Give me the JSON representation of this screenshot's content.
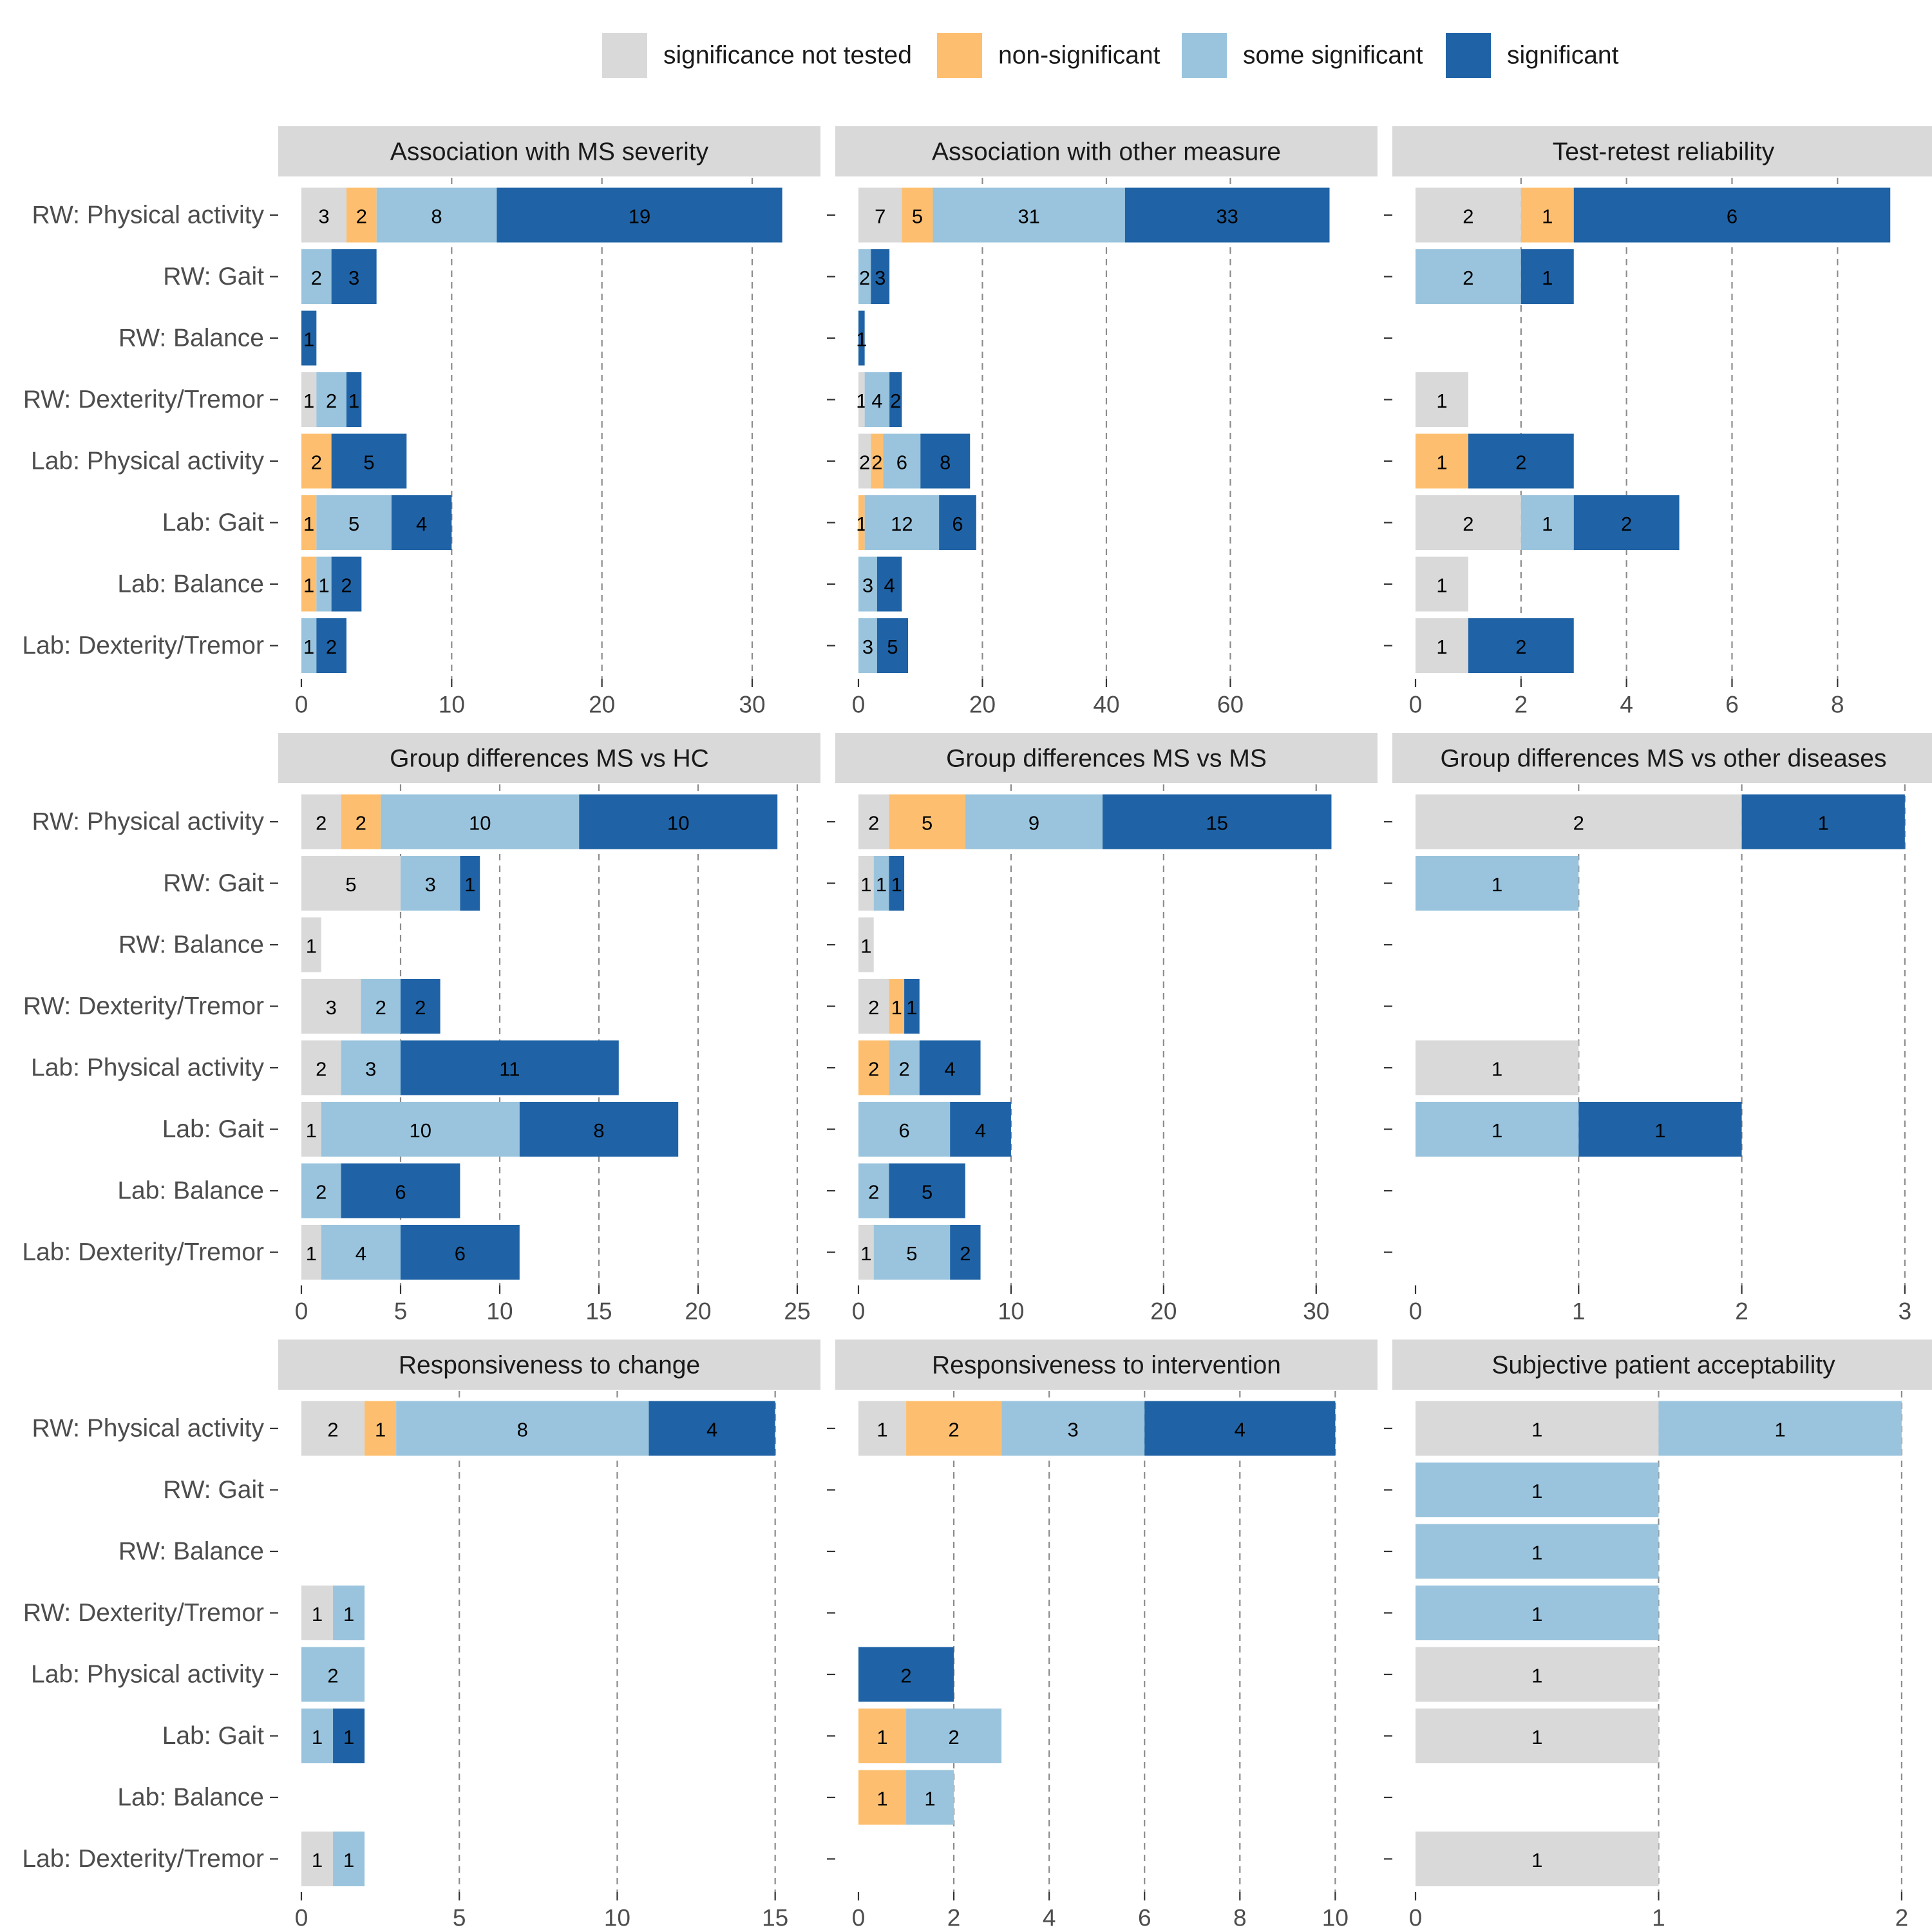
{
  "legend": {
    "items": [
      {
        "label": "significance not tested",
        "color": "#D9D9D9"
      },
      {
        "label": "non-significant",
        "color": "#FDBF6F"
      },
      {
        "label": "some significant",
        "color": "#9AC4DD"
      },
      {
        "label": "significant",
        "color": "#1F63A6"
      }
    ]
  },
  "chart_data": {
    "type": "bar",
    "orientation": "horizontal",
    "stacked": true,
    "legend_position": "top",
    "categories": [
      "RW: Physical activity",
      "RW: Gait",
      "RW: Balance",
      "RW: Dexterity/Tremor",
      "Lab: Physical activity",
      "Lab: Gait",
      "Lab: Balance",
      "Lab: Dexterity/Tremor"
    ],
    "series_names": [
      "significance not tested",
      "non-significant",
      "some significant",
      "significant"
    ],
    "facets": [
      {
        "title": "Association with MS severity",
        "xlim": [
          0,
          33
        ],
        "ticks": [
          0,
          10,
          20,
          30
        ],
        "values": [
          [
            3,
            2,
            8,
            19
          ],
          [
            0,
            0,
            2,
            3
          ],
          [
            0,
            0,
            0,
            1
          ],
          [
            1,
            0,
            2,
            1
          ],
          [
            0,
            2,
            0,
            5
          ],
          [
            0,
            1,
            5,
            4
          ],
          [
            0,
            1,
            1,
            2
          ],
          [
            0,
            0,
            1,
            2
          ]
        ]
      },
      {
        "title": "Association with other measure",
        "xlim": [
          0,
          80
        ],
        "ticks": [
          0,
          20,
          40,
          60
        ],
        "values": [
          [
            7,
            5,
            31,
            33
          ],
          [
            0,
            0,
            2,
            3
          ],
          [
            0,
            0,
            0,
            1
          ],
          [
            1,
            0,
            4,
            2
          ],
          [
            2,
            2,
            6,
            8
          ],
          [
            0,
            1,
            12,
            6
          ],
          [
            0,
            0,
            3,
            4
          ],
          [
            0,
            0,
            3,
            5
          ]
        ]
      },
      {
        "title": "Test-retest reliability",
        "xlim": [
          0,
          9.4
        ],
        "ticks": [
          0,
          2,
          4,
          6,
          8
        ],
        "values": [
          [
            2,
            1,
            0,
            6
          ],
          [
            0,
            0,
            2,
            1
          ],
          [
            0,
            0,
            0,
            0
          ],
          [
            1,
            0,
            0,
            0
          ],
          [
            0,
            1,
            0,
            2
          ],
          [
            2,
            0,
            1,
            2
          ],
          [
            1,
            0,
            0,
            0
          ],
          [
            1,
            0,
            0,
            2
          ]
        ]
      },
      {
        "title": "Group differences MS vs HC",
        "xlim": [
          0,
          25
        ],
        "ticks": [
          0,
          5,
          10,
          15,
          20,
          25
        ],
        "values": [
          [
            2,
            2,
            10,
            10
          ],
          [
            5,
            0,
            3,
            1
          ],
          [
            1,
            0,
            0,
            0
          ],
          [
            3,
            0,
            2,
            2
          ],
          [
            2,
            0,
            3,
            11
          ],
          [
            1,
            0,
            10,
            8
          ],
          [
            0,
            0,
            2,
            6
          ],
          [
            1,
            0,
            4,
            6
          ]
        ]
      },
      {
        "title": "Group differences MS vs MS",
        "xlim": [
          0,
          32.5
        ],
        "ticks": [
          0,
          10,
          20,
          30
        ],
        "values": [
          [
            2,
            5,
            9,
            15
          ],
          [
            1,
            0,
            1,
            1
          ],
          [
            1,
            0,
            0,
            0
          ],
          [
            2,
            1,
            0,
            1
          ],
          [
            0,
            2,
            2,
            4
          ],
          [
            0,
            0,
            6,
            4
          ],
          [
            0,
            0,
            2,
            5
          ],
          [
            1,
            0,
            5,
            2
          ]
        ]
      },
      {
        "title": "Group differences MS vs other diseases",
        "xlim": [
          0,
          3.04
        ],
        "ticks": [
          0,
          1,
          2,
          3
        ],
        "values": [
          [
            2,
            0,
            0,
            1
          ],
          [
            0,
            0,
            1,
            0
          ],
          [
            0,
            0,
            0,
            0
          ],
          [
            0,
            0,
            0,
            0
          ],
          [
            1,
            0,
            0,
            0
          ],
          [
            0,
            0,
            1,
            1
          ],
          [
            0,
            0,
            0,
            0
          ],
          [
            0,
            0,
            0,
            0
          ]
        ]
      },
      {
        "title": "Responsiveness to change",
        "xlim": [
          0,
          15.7
        ],
        "ticks": [
          0,
          5,
          10,
          15
        ],
        "values": [
          [
            2,
            1,
            8,
            4
          ],
          [
            0,
            0,
            0,
            0
          ],
          [
            0,
            0,
            0,
            0
          ],
          [
            1,
            0,
            1,
            0
          ],
          [
            0,
            0,
            2,
            0
          ],
          [
            0,
            0,
            1,
            1
          ],
          [
            0,
            0,
            0,
            0
          ],
          [
            1,
            0,
            1,
            0
          ]
        ]
      },
      {
        "title": "Responsiveness to intervention",
        "xlim": [
          0,
          10.4
        ],
        "ticks": [
          0,
          2,
          4,
          6,
          8,
          10
        ],
        "values": [
          [
            1,
            2,
            3,
            4
          ],
          [
            0,
            0,
            0,
            0
          ],
          [
            0,
            0,
            0,
            0
          ],
          [
            0,
            0,
            0,
            0
          ],
          [
            0,
            0,
            0,
            2
          ],
          [
            0,
            1,
            2,
            0
          ],
          [
            0,
            1,
            1,
            0
          ],
          [
            0,
            0,
            0,
            0
          ]
        ]
      },
      {
        "title": "Subjective patient acceptability",
        "xlim": [
          0,
          2.04
        ],
        "ticks": [
          0,
          1,
          2
        ],
        "values": [
          [
            1,
            0,
            1,
            0
          ],
          [
            0,
            0,
            1,
            0
          ],
          [
            0,
            0,
            1,
            0
          ],
          [
            0,
            0,
            1,
            0
          ],
          [
            1,
            0,
            0,
            0
          ],
          [
            1,
            0,
            0,
            0
          ],
          [
            0,
            0,
            0,
            0
          ],
          [
            1,
            0,
            0,
            0
          ]
        ]
      }
    ]
  }
}
